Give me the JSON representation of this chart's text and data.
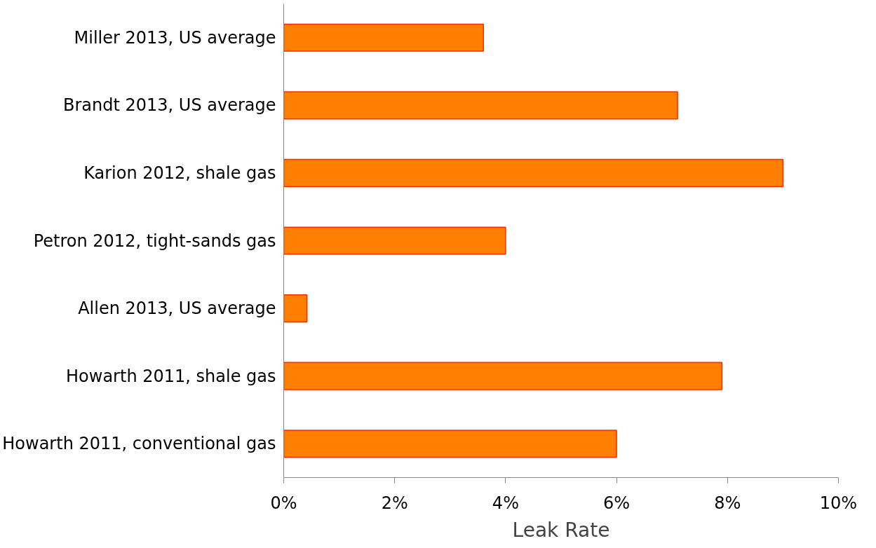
{
  "chart_data": {
    "type": "bar",
    "orientation": "horizontal",
    "xlabel": "Leak Rate",
    "categories": [
      "Miller 2013, US average",
      "Brandt 2013, US average",
      "Karion 2012, shale gas",
      "Petron 2012, tight-sands gas",
      "Allen 2013, US average",
      "Howarth 2011, shale gas",
      "Howarth 2011, conventional gas"
    ],
    "values": [
      3.6,
      7.1,
      9.0,
      4.0,
      0.42,
      7.9,
      6.0
    ],
    "color": "#ff8000",
    "xlim": [
      0,
      10
    ],
    "xticks": [
      {
        "value": 0,
        "label": "0%"
      },
      {
        "value": 2,
        "label": "2%"
      },
      {
        "value": 4,
        "label": "4%"
      },
      {
        "value": 6,
        "label": "6%"
      },
      {
        "value": 8,
        "label": "8%"
      },
      {
        "value": 10,
        "label": "10%"
      }
    ],
    "grid": false
  }
}
